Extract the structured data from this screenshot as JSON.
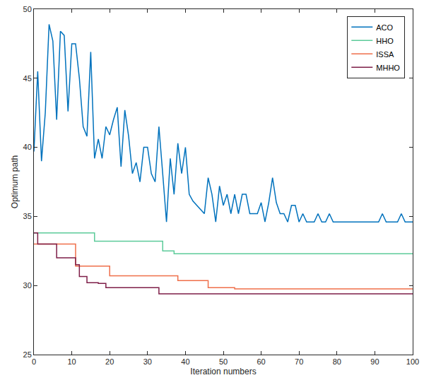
{
  "chart_data": {
    "type": "line",
    "x_label": "Iteration numbers",
    "y_label": "Optimum path",
    "xlim": [
      0,
      100
    ],
    "xticks": [
      0,
      10,
      20,
      30,
      40,
      50,
      60,
      70,
      80,
      90,
      100
    ],
    "ylim": [
      25,
      50
    ],
    "yticks": [
      25,
      30,
      35,
      40,
      45,
      50
    ],
    "grid": false,
    "legend": "top right",
    "series": [
      {
        "name": "ACO",
        "color": "#0072bd",
        "line_style": "solid",
        "x": [
          0,
          1,
          2,
          3,
          4,
          5,
          6,
          7,
          8,
          9,
          10,
          11,
          12,
          13,
          14,
          15,
          16,
          17,
          18,
          19,
          20,
          21,
          22,
          23,
          24,
          25,
          26,
          27,
          28,
          29,
          30,
          31,
          32,
          33,
          34,
          35,
          36,
          37,
          38,
          39,
          40,
          41,
          42,
          43,
          44,
          45,
          46,
          47,
          48,
          49,
          50,
          51,
          52,
          53,
          54,
          55,
          56,
          57,
          58,
          59,
          60,
          61,
          62,
          63,
          64,
          65,
          66,
          67,
          68,
          69,
          70,
          71,
          72,
          73,
          74,
          75,
          76,
          77,
          78,
          79,
          80,
          81,
          82,
          83,
          84,
          85,
          86,
          87,
          88,
          89,
          90,
          91,
          92,
          93,
          94,
          95,
          96,
          97,
          98,
          99,
          100
        ],
        "values": [
          39.7,
          45.5,
          39,
          42.5,
          48.9,
          47.7,
          42,
          48.4,
          48.1,
          42.6,
          47.5,
          47.5,
          45,
          41.5,
          40.8,
          46.9,
          39.2,
          40.6,
          39.2,
          41.5,
          40.9,
          42,
          42.9,
          38.6,
          42.7,
          40.8,
          38.1,
          38.9,
          37.5,
          40,
          40,
          38.1,
          37.5,
          41.5,
          38.1,
          34.6,
          39.2,
          36.6,
          40.3,
          38.1,
          40,
          36.6,
          36.1,
          35.8,
          35.5,
          35.2,
          37.8,
          36.6,
          34.6,
          37.2,
          35.8,
          36.6,
          35.2,
          36.6,
          35.2,
          36.6,
          36.6,
          35.2,
          35.2,
          35.2,
          36,
          34.6,
          36,
          37.8,
          36,
          35.2,
          35.2,
          34.6,
          35.8,
          35.8,
          34.6,
          35.2,
          34.6,
          34.6,
          34.6,
          35.2,
          34.6,
          34.6,
          35.2,
          34.6,
          34.6,
          34.6,
          34.6,
          34.6,
          34.6,
          34.6,
          34.6,
          34.6,
          34.6,
          34.6,
          34.6,
          34.6,
          35.2,
          34.6,
          34.6,
          34.6,
          34.6,
          35.2,
          34.6,
          34.6,
          34.6
        ]
      },
      {
        "name": "HHO",
        "color": "#5ccb9a",
        "line_style": "step",
        "x": [
          0,
          16,
          34,
          37,
          100
        ],
        "values": [
          33.8,
          33.2,
          32.5,
          32.3,
          32.3
        ]
      },
      {
        "name": "ISSA",
        "color": "#ef6f4a",
        "line_style": "step",
        "x": [
          0,
          11,
          20,
          38,
          46,
          53,
          100
        ],
        "values": [
          33,
          31.4,
          30.7,
          30.35,
          29.85,
          29.75,
          29.75
        ]
      },
      {
        "name": "MHHO",
        "color": "#7e1e48",
        "line_style": "step",
        "x": [
          0,
          1,
          6,
          11,
          12,
          14,
          17,
          19,
          33,
          100
        ],
        "values": [
          33.8,
          33,
          32,
          31.5,
          30.65,
          30.2,
          30.15,
          29.85,
          29.4,
          29.4
        ]
      }
    ]
  }
}
